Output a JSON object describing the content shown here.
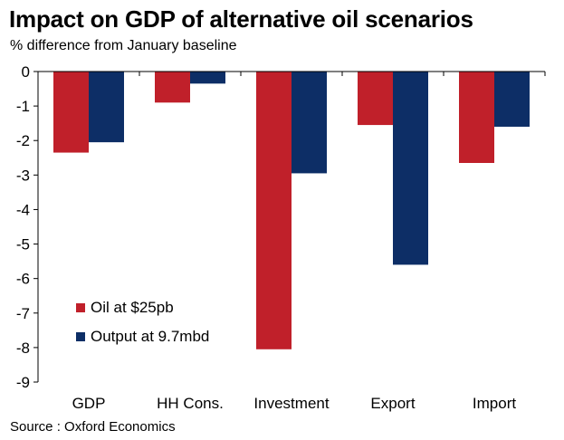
{
  "header": {
    "title": "Impact on GDP of alternative oil scenarios",
    "subtitle": "% difference from January baseline"
  },
  "footer": {
    "source": "Source : Oxford Economics"
  },
  "chart_data": {
    "type": "bar",
    "title": "Impact on GDP of alternative oil scenarios",
    "subtitle": "% difference from January baseline",
    "xlabel": "",
    "ylabel": "",
    "categories": [
      "GDP",
      "HH Cons.",
      "Investment",
      "Export",
      "Import"
    ],
    "ylim": [
      -9,
      0
    ],
    "yticks": [
      0,
      -1,
      -2,
      -3,
      -4,
      -5,
      -6,
      -7,
      -8,
      -9
    ],
    "grid": false,
    "legend_position": "bottom-left",
    "series": [
      {
        "name": "Oil at $25pb",
        "color": "#c0202a",
        "values": [
          -2.35,
          -0.9,
          -8.05,
          -1.55,
          -2.65
        ]
      },
      {
        "name": "Output at 9.7mbd",
        "color": "#0d2e66",
        "values": [
          -2.05,
          -0.35,
          -2.95,
          -5.6,
          -1.6
        ]
      }
    ]
  }
}
